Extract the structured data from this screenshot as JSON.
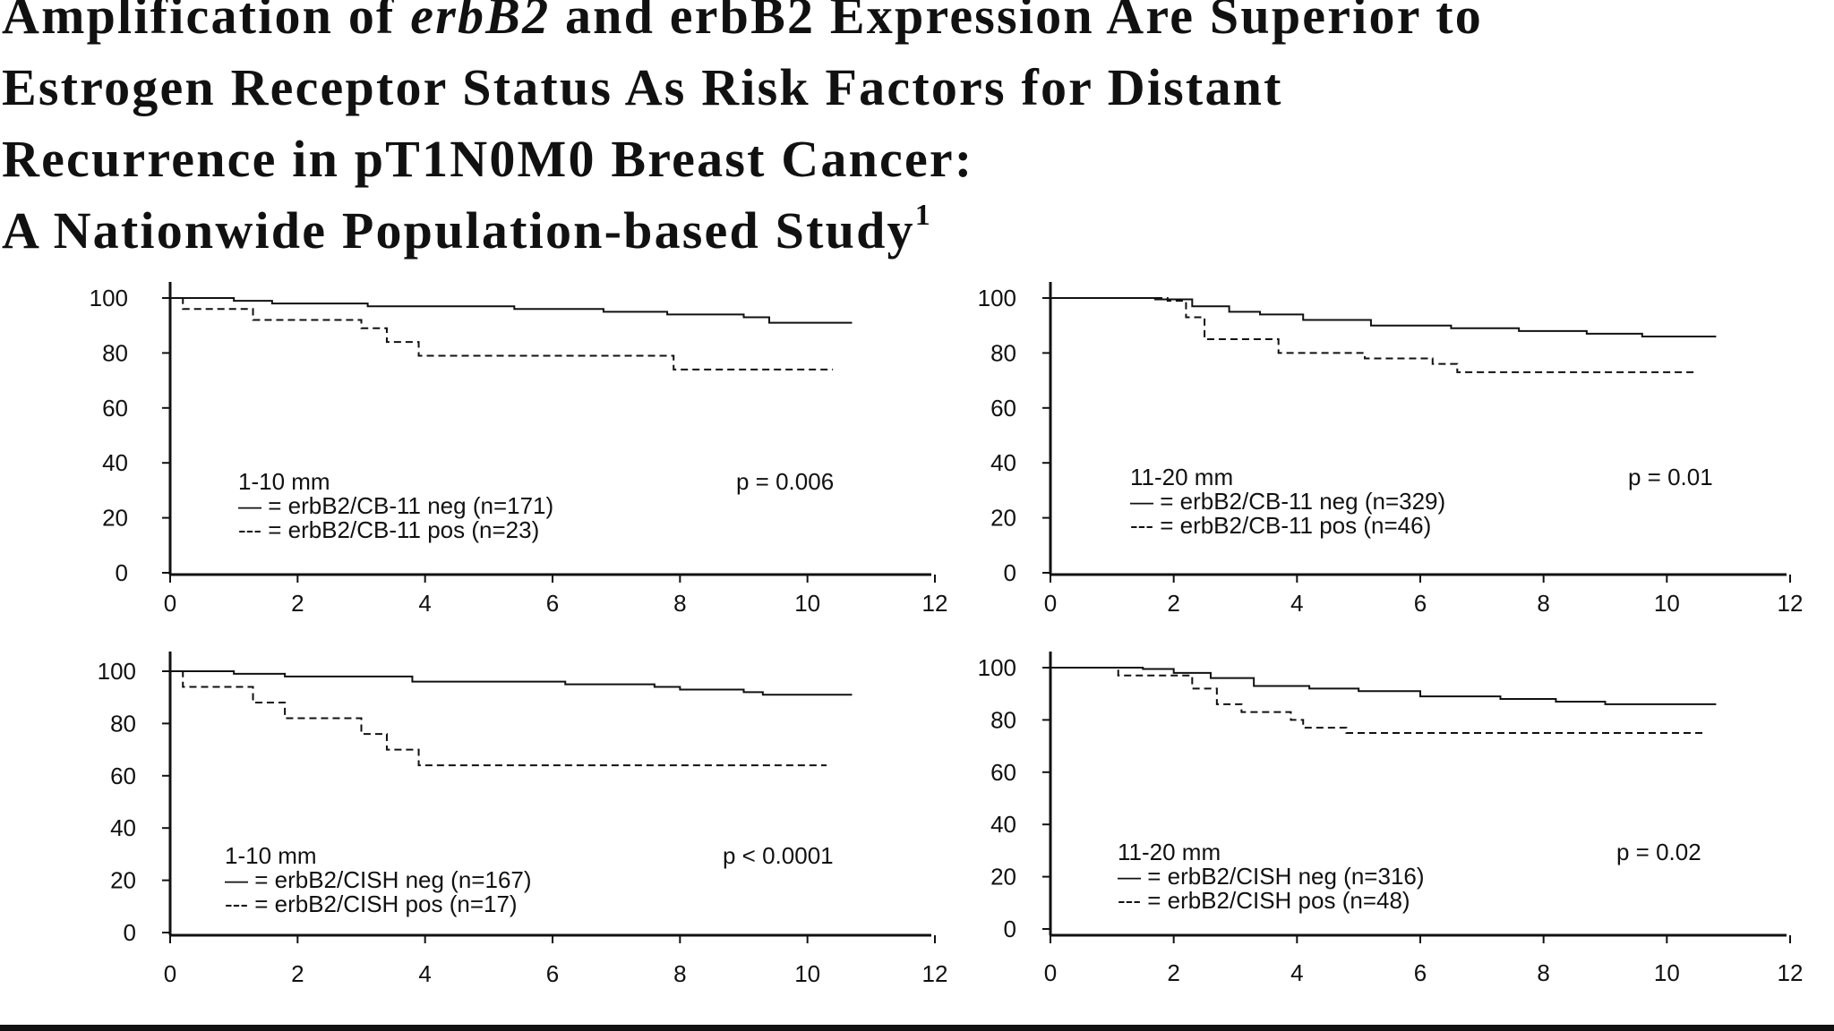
{
  "title": {
    "line1_pre": "Amplification of ",
    "line1_em": "erbB2",
    "line1_post": " and erbB2 Expression Are Superior to",
    "line2": "Estrogen Receptor Status As Risk Factors for Distant",
    "line3": "Recurrence in pT1N0M0 Breast Cancer:",
    "line4": "A Nationwide Population-based Study",
    "footnote_mark": "1"
  },
  "chart_data": [
    {
      "type": "line",
      "xlim": [
        0,
        12
      ],
      "ylim": [
        0,
        100
      ],
      "x_ticks": [
        "0",
        "2",
        "4",
        "6",
        "8",
        "10",
        "12"
      ],
      "y_ticks": [
        "0",
        "20",
        "40",
        "60",
        "80",
        "100"
      ],
      "annotations": {
        "group": "1-10 mm",
        "p_value": "p = 0.006",
        "legend_solid": "— = erbB2/CB-11 neg (n=171)",
        "legend_dashed": "--- = erbB2/CB-11 pos  (n=23)"
      },
      "series": [
        {
          "name": "erbB2/CB-11 neg (n=171)",
          "style": "solid",
          "points": [
            [
              0,
              100
            ],
            [
              1,
              99
            ],
            [
              1.6,
              98
            ],
            [
              3.1,
              97
            ],
            [
              5.4,
              96
            ],
            [
              6.8,
              95
            ],
            [
              7.8,
              94
            ],
            [
              9,
              93
            ],
            [
              9.4,
              91
            ],
            [
              10.7,
              91
            ]
          ]
        },
        {
          "name": "erbB2/CB-11 pos (n=23)",
          "style": "dashed",
          "points": [
            [
              0,
              100
            ],
            [
              0.2,
              96
            ],
            [
              1.3,
              92
            ],
            [
              3,
              89
            ],
            [
              3.4,
              84
            ],
            [
              3.9,
              79
            ],
            [
              7.9,
              74
            ],
            [
              10.4,
              74
            ]
          ]
        }
      ]
    },
    {
      "type": "line",
      "xlim": [
        0,
        12
      ],
      "ylim": [
        0,
        100
      ],
      "x_ticks": [
        "0",
        "2",
        "4",
        "6",
        "8",
        "10",
        "12"
      ],
      "y_ticks": [
        "0",
        "20",
        "40",
        "60",
        "80",
        "100"
      ],
      "annotations": {
        "group": "11-20 mm",
        "p_value": "p = 0.01",
        "legend_solid": "— = erbB2/CB-11 neg (n=329)",
        "legend_dashed": "--- = erbB2/CB-11 pos (n=46)"
      },
      "series": [
        {
          "name": "erbB2/CB-11 neg (n=329)",
          "style": "solid",
          "points": [
            [
              0,
              100
            ],
            [
              1.7,
              99.5
            ],
            [
              2.3,
              97
            ],
            [
              2.9,
              95
            ],
            [
              3.4,
              94
            ],
            [
              4.1,
              92
            ],
            [
              5.2,
              90
            ],
            [
              6.5,
              89
            ],
            [
              7.6,
              88
            ],
            [
              8.7,
              87
            ],
            [
              9.6,
              86
            ],
            [
              10.8,
              86
            ]
          ]
        },
        {
          "name": "erbB2/CB-11 pos (n=46)",
          "style": "dashed",
          "points": [
            [
              0,
              100
            ],
            [
              1.9,
              99
            ],
            [
              2.2,
              93
            ],
            [
              2.5,
              85
            ],
            [
              3.7,
              80
            ],
            [
              5.1,
              78
            ],
            [
              6.2,
              76
            ],
            [
              6.6,
              73
            ],
            [
              10.5,
              73
            ]
          ]
        }
      ]
    },
    {
      "type": "line",
      "xlim": [
        0,
        12
      ],
      "ylim": [
        0,
        100
      ],
      "x_ticks": [
        "0",
        "2",
        "4",
        "6",
        "8",
        "10",
        "12"
      ],
      "y_ticks": [
        "0",
        "20",
        "40",
        "60",
        "80",
        "100"
      ],
      "annotations": {
        "group": "1-10 mm",
        "p_value": "p < 0.0001",
        "legend_solid": "— = erbB2/CISH neg (n=167)",
        "legend_dashed": "--- = erbB2/CISH pos (n=17)"
      },
      "series": [
        {
          "name": "erbB2/CISH neg (n=167)",
          "style": "solid",
          "points": [
            [
              0,
              100
            ],
            [
              1,
              99
            ],
            [
              1.8,
              98
            ],
            [
              3.8,
              96
            ],
            [
              6.2,
              95
            ],
            [
              7.6,
              94
            ],
            [
              8,
              93
            ],
            [
              9,
              92
            ],
            [
              9.3,
              91
            ],
            [
              10.7,
              91
            ]
          ]
        },
        {
          "name": "erbB2/CISH pos (n=17)",
          "style": "dashed",
          "points": [
            [
              0,
              100
            ],
            [
              0.2,
              94
            ],
            [
              1.3,
              88
            ],
            [
              1.8,
              82
            ],
            [
              3,
              76
            ],
            [
              3.4,
              70
            ],
            [
              3.9,
              64
            ],
            [
              10.3,
              64
            ]
          ]
        }
      ]
    },
    {
      "type": "line",
      "xlim": [
        0,
        12
      ],
      "ylim": [
        0,
        100
      ],
      "x_ticks": [
        "0",
        "2",
        "4",
        "6",
        "8",
        "10",
        "12"
      ],
      "y_ticks": [
        "0",
        "20",
        "40",
        "60",
        "80",
        "100"
      ],
      "annotations": {
        "group": "11-20 mm",
        "p_value": "p = 0.02",
        "legend_solid": "— = erbB2/CISH neg (n=316)",
        "legend_dashed": "--- = erbB2/CISH pos (n=48)"
      },
      "series": [
        {
          "name": "erbB2/CISH neg (n=316)",
          "style": "solid",
          "points": [
            [
              0,
              100
            ],
            [
              1.5,
              99.5
            ],
            [
              2,
              98
            ],
            [
              2.6,
              96
            ],
            [
              3.3,
              93
            ],
            [
              4.2,
              92
            ],
            [
              5,
              91
            ],
            [
              6,
              89
            ],
            [
              7.3,
              88
            ],
            [
              8.2,
              87
            ],
            [
              9,
              86
            ],
            [
              10.8,
              86
            ]
          ]
        },
        {
          "name": "erbB2/CISH pos (n=48)",
          "style": "dashed",
          "points": [
            [
              0,
              100
            ],
            [
              1.1,
              97
            ],
            [
              2.3,
              92
            ],
            [
              2.7,
              86
            ],
            [
              3.1,
              83
            ],
            [
              3.9,
              80
            ],
            [
              4.1,
              77
            ],
            [
              4.8,
              75
            ],
            [
              10.6,
              75
            ]
          ]
        }
      ]
    }
  ]
}
